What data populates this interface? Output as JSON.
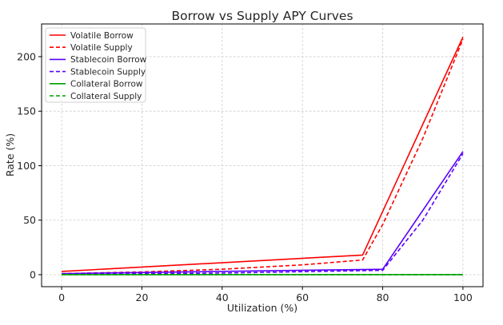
{
  "chart_data": {
    "type": "line",
    "title": "Borrow vs Supply APY Curves",
    "xlabel": "Utilization (%)",
    "ylabel": "Rate (%)",
    "xlim": [
      -5,
      105
    ],
    "ylim": [
      -11,
      230
    ],
    "xticks": [
      0,
      20,
      40,
      60,
      80,
      100
    ],
    "yticks": [
      0,
      50,
      100,
      150,
      200
    ],
    "grid": true,
    "legend_position": "top-left",
    "series": [
      {
        "name": "Volatile Borrow",
        "color": "#ff0000",
        "style": "solid",
        "x": [
          0,
          75,
          100
        ],
        "y": [
          3,
          18,
          218
        ]
      },
      {
        "name": "Volatile Supply",
        "color": "#ff0000",
        "style": "dashed",
        "x": [
          0,
          20,
          40,
          60,
          75,
          80,
          90,
          100
        ],
        "y": [
          1,
          2.5,
          5,
          9,
          13.5,
          46,
          125,
          216
        ]
      },
      {
        "name": "Stablecoin Borrow",
        "color": "#5a00ff",
        "style": "solid",
        "x": [
          0,
          80,
          100
        ],
        "y": [
          1,
          5,
          113
        ]
      },
      {
        "name": "Stablecoin Supply",
        "color": "#5a00ff",
        "style": "dashed",
        "x": [
          0,
          40,
          80,
          90,
          100
        ],
        "y": [
          0.3,
          1.5,
          4,
          50,
          111
        ]
      },
      {
        "name": "Collateral Borrow",
        "color": "#00a000",
        "style": "solid",
        "x": [
          0,
          100
        ],
        "y": [
          0,
          0
        ]
      },
      {
        "name": "Collateral Supply",
        "color": "#00a000",
        "style": "dashed",
        "x": [
          0,
          100
        ],
        "y": [
          0,
          0
        ]
      }
    ]
  }
}
